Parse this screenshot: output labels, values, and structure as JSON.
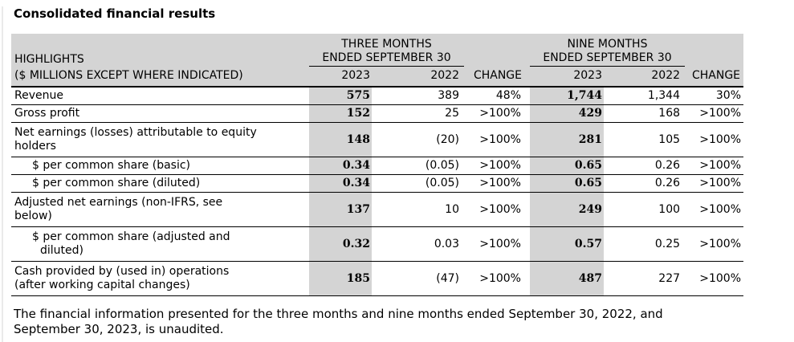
{
  "page": {
    "title": "Consolidated financial results",
    "footnote_lines": [
      "The financial information presented for the three months and nine months ended September 30, 2022, and",
      "September 30, 2023, is unaudited."
    ]
  },
  "colors": {
    "header_bg": "#d4d4d4",
    "highlight_column_bg": "#d4d4d4",
    "border": "#000000",
    "text": "#000000"
  },
  "table": {
    "header": {
      "label_line1": "HIGHLIGHTS",
      "label_line2": "($ MILLIONS EXCEPT WHERE INDICATED)",
      "group_three_months_line1": "THREE MONTHS",
      "group_three_months_line2": "ENDED SEPTEMBER 30",
      "group_nine_months_line1": "NINE MONTHS",
      "group_nine_months_line2": "ENDED SEPTEMBER 30",
      "col_2023": "2023",
      "col_2022": "2022",
      "col_change": "CHANGE"
    },
    "rows": [
      {
        "label_lines": [
          "Revenue"
        ],
        "indent": false,
        "tm2023": "575",
        "tm2022": "389",
        "tmchange": "48%",
        "nm2023": "1,744",
        "nm2022": "1,344",
        "nmchange": "30%"
      },
      {
        "label_lines": [
          "Gross profit"
        ],
        "indent": false,
        "tm2023": "152",
        "tm2022": "25",
        "tmchange": ">100%",
        "nm2023": "429",
        "nm2022": "168",
        "nmchange": ">100%"
      },
      {
        "label_lines": [
          "Net earnings (losses) attributable to equity",
          "holders"
        ],
        "indent": false,
        "tm2023": "148",
        "tm2022": "(20)",
        "tmchange": ">100%",
        "nm2023": "281",
        "nm2022": "105",
        "nmchange": ">100%"
      },
      {
        "label_lines": [
          "$ per common share (basic)"
        ],
        "indent": true,
        "tm2023": "0.34",
        "tm2022": "(0.05)",
        "tmchange": ">100%",
        "nm2023": "0.65",
        "nm2022": "0.26",
        "nmchange": ">100%"
      },
      {
        "label_lines": [
          "$ per common share (diluted)"
        ],
        "indent": true,
        "tm2023": "0.34",
        "tm2022": "(0.05)",
        "tmchange": ">100%",
        "nm2023": "0.65",
        "nm2022": "0.26",
        "nmchange": ">100%"
      },
      {
        "label_lines": [
          "Adjusted net earnings (non-IFRS, see",
          "below)"
        ],
        "indent": false,
        "tm2023": "137",
        "tm2022": "10",
        "tmchange": ">100%",
        "nm2023": "249",
        "nm2022": "100",
        "nmchange": ">100%"
      },
      {
        "label_lines": [
          "$ per common share (adjusted and",
          "diluted)"
        ],
        "indent": true,
        "tm2023": "0.32",
        "tm2022": "0.03",
        "tmchange": ">100%",
        "nm2023": "0.57",
        "nm2022": "0.25",
        "nmchange": ">100%"
      },
      {
        "label_lines": [
          "Cash provided by (used in) operations",
          "(after working capital changes)"
        ],
        "indent": false,
        "tm2023": "185",
        "tm2022": "(47)",
        "tmchange": ">100%",
        "nm2023": "487",
        "nm2022": "227",
        "nmchange": ">100%"
      }
    ]
  }
}
